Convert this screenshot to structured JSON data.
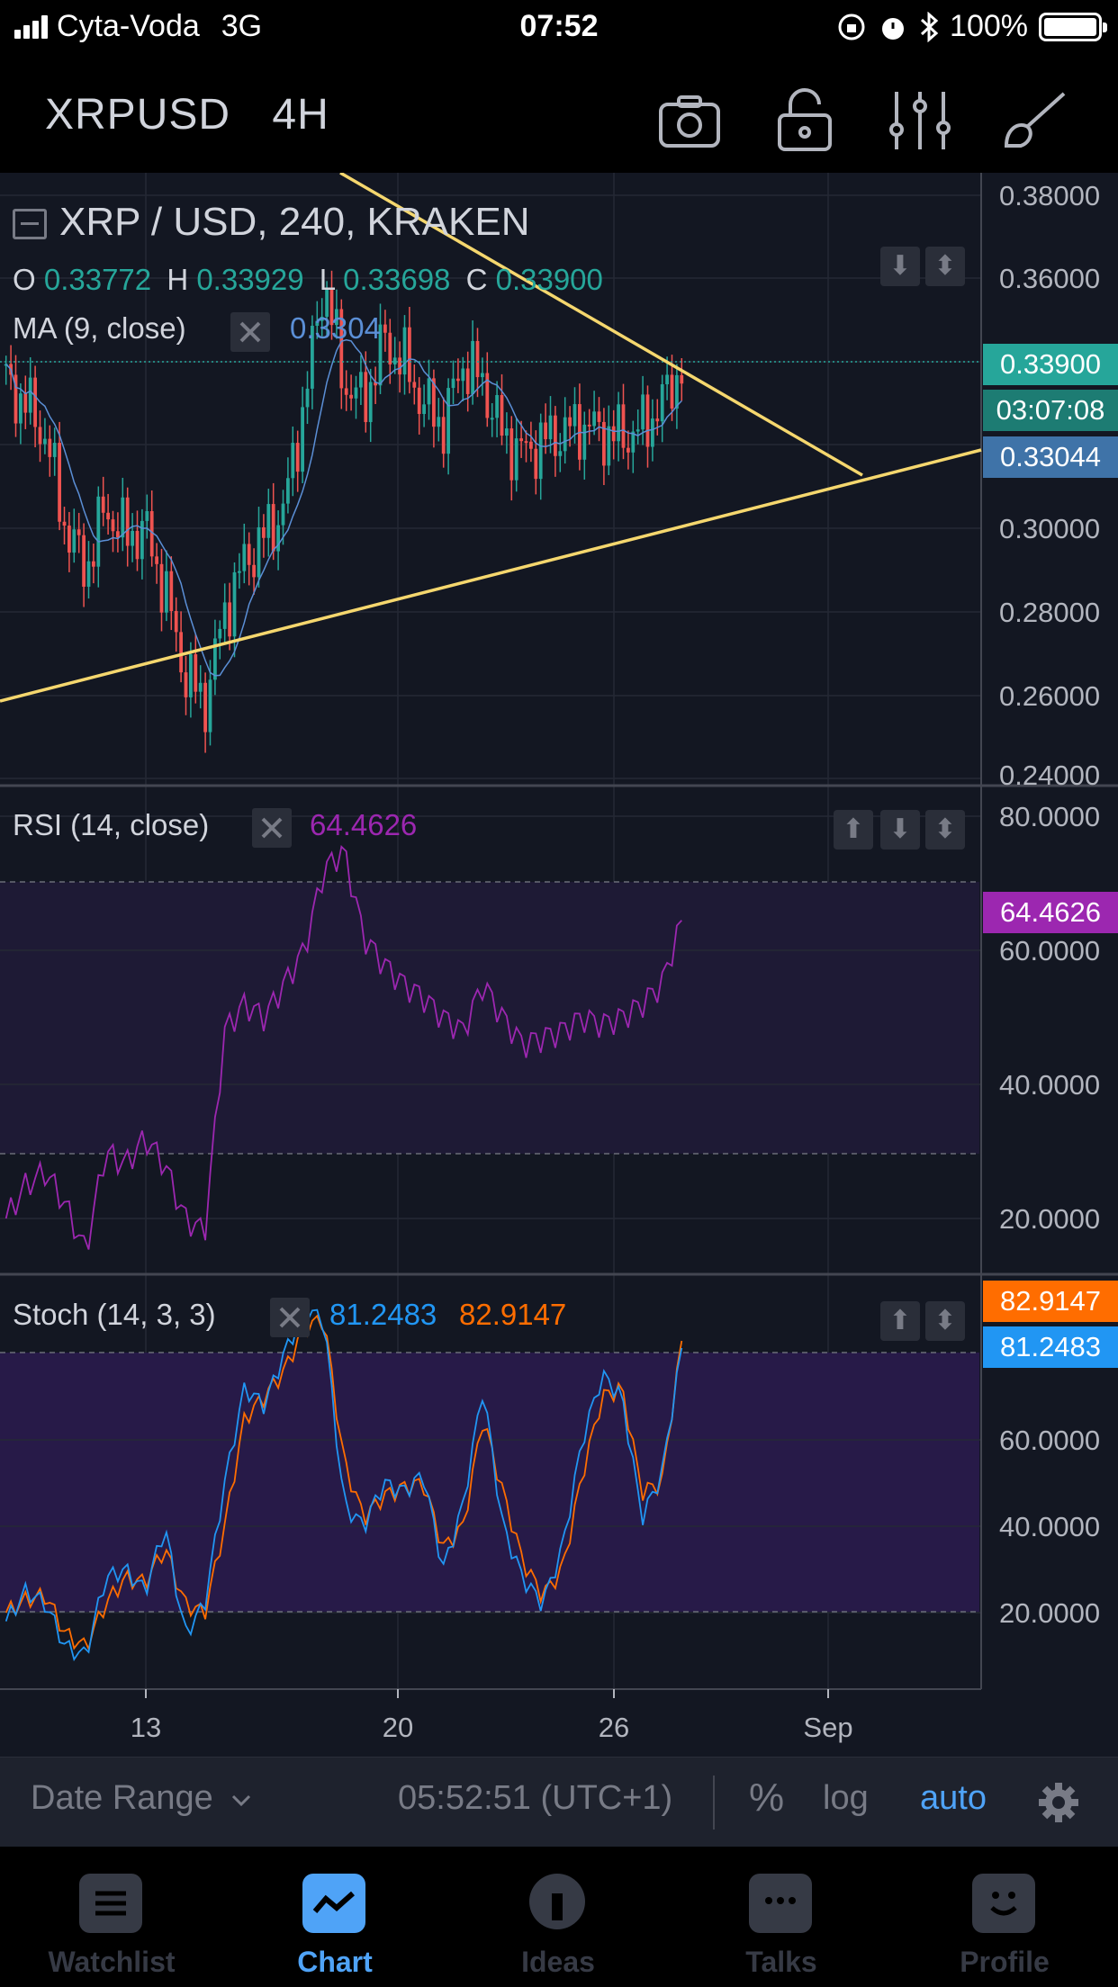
{
  "status_bar": {
    "carrier": "Cyta-Voda",
    "network": "3G",
    "time": "07:52",
    "battery": "100%"
  },
  "toolbar": {
    "symbol": "XRPUSD",
    "interval": "4H",
    "icons": [
      "camera-icon",
      "lock-open-icon",
      "indicators-icon",
      "drawing-brush-icon"
    ]
  },
  "main_pane": {
    "title": "XRP / USD, 240, KRAKEN",
    "ohlc": {
      "o_label": "O",
      "o": "0.33772",
      "h_label": "H",
      "h": "0.33929",
      "l_label": "L",
      "l": "0.33698",
      "c_label": "C",
      "c": "0.33900"
    },
    "ma_label": "MA (9, close)",
    "ma_value": "0.3304",
    "price_labels": [
      "0.38000",
      "0.36000",
      "0.30000",
      "0.28000",
      "0.26000",
      "0.24000"
    ],
    "last_price": "0.33900",
    "countdown": "03:07:08",
    "ma_tag": "0.33044"
  },
  "rsi_pane": {
    "label": "RSI (14, close)",
    "value": "64.4626",
    "tag": "64.4626",
    "axis_labels": [
      "80.0000",
      "60.0000",
      "40.0000",
      "20.0000"
    ]
  },
  "stoch_pane": {
    "label": "Stoch (14, 3, 3)",
    "k_value": "81.2483",
    "d_value": "82.9147",
    "k_tag": "81.2483",
    "d_tag": "82.9147",
    "axis_labels": [
      "60.0000",
      "40.0000",
      "20.0000"
    ]
  },
  "time_axis": [
    "13",
    "20",
    "26",
    "Sep"
  ],
  "bottom_bar": {
    "date_range": "Date Range",
    "clock": "05:52:51 (UTC+1)",
    "percent": "%",
    "log": "log",
    "auto": "auto"
  },
  "tabs": [
    {
      "label": "Watchlist",
      "icon": "watchlist-icon"
    },
    {
      "label": "Chart",
      "icon": "chart-icon"
    },
    {
      "label": "Ideas",
      "icon": "ideas-icon"
    },
    {
      "label": "Talks",
      "icon": "talks-icon"
    },
    {
      "label": "Profile",
      "icon": "profile-icon"
    }
  ],
  "colors": {
    "background": "#131722",
    "up": "#26a69a",
    "down": "#ef5350",
    "trendline": "#f5d76e",
    "rsi": "#9c27b0",
    "stoch_k": "#2196f3",
    "stoch_d": "#ff6d00",
    "accent": "#4fa3f7"
  },
  "chart_data": [
    {
      "type": "candlestick",
      "title": "XRP / USD, 240, KRAKEN",
      "x_ticks": [
        "13",
        "20",
        "26",
        "Sep"
      ],
      "ylim": [
        0.24,
        0.38
      ],
      "y_ticks": [
        0.38,
        0.36,
        0.3,
        0.28,
        0.26,
        0.24
      ],
      "close_path": [
        0.335,
        0.33,
        0.322,
        0.3,
        0.29,
        0.305,
        0.298,
        0.3,
        0.285,
        0.265,
        0.258,
        0.28,
        0.292,
        0.298,
        0.305,
        0.33,
        0.36,
        0.335,
        0.33,
        0.345,
        0.34,
        0.33,
        0.325,
        0.34,
        0.335,
        0.322,
        0.318,
        0.321,
        0.323,
        0.325,
        0.323,
        0.322,
        0.324,
        0.33,
        0.339
      ],
      "series": [
        {
          "name": "MA (9, close)",
          "last": 0.33044
        },
        {
          "name": "last close",
          "last": 0.339
        }
      ]
    },
    {
      "type": "line",
      "title": "RSI (14, close)",
      "ylim": [
        10,
        85
      ],
      "y_ticks": [
        80,
        60,
        40,
        20
      ],
      "bands": [
        30,
        70
      ],
      "values": [
        20,
        25,
        27,
        22,
        15,
        30,
        28,
        32,
        28,
        20,
        18,
        48,
        52,
        50,
        55,
        60,
        72,
        75,
        62,
        58,
        55,
        53,
        50,
        48,
        55,
        50,
        46,
        47,
        48,
        50,
        49,
        50,
        52,
        55,
        64.4626
      ]
    },
    {
      "type": "line",
      "title": "Stoch (14, 3, 3)",
      "ylim": [
        5,
        95
      ],
      "y_ticks": [
        60,
        40,
        20
      ],
      "bands": [
        20,
        80
      ],
      "series": [
        {
          "name": "K",
          "values": [
            18,
            25,
            22,
            12,
            10,
            28,
            30,
            25,
            40,
            15,
            22,
            50,
            72,
            68,
            80,
            90,
            88,
            45,
            40,
            50,
            48,
            52,
            30,
            45,
            72,
            40,
            28,
            22,
            35,
            60,
            75,
            70,
            42,
            52,
            81.2483
          ]
        },
        {
          "name": "D",
          "values": [
            20,
            23,
            24,
            15,
            12,
            22,
            28,
            27,
            35,
            22,
            20,
            40,
            65,
            70,
            76,
            86,
            88,
            55,
            42,
            47,
            49,
            50,
            35,
            40,
            65,
            48,
            32,
            24,
            30,
            52,
            70,
            72,
            48,
            50,
            82.9147
          ]
        }
      ]
    }
  ]
}
